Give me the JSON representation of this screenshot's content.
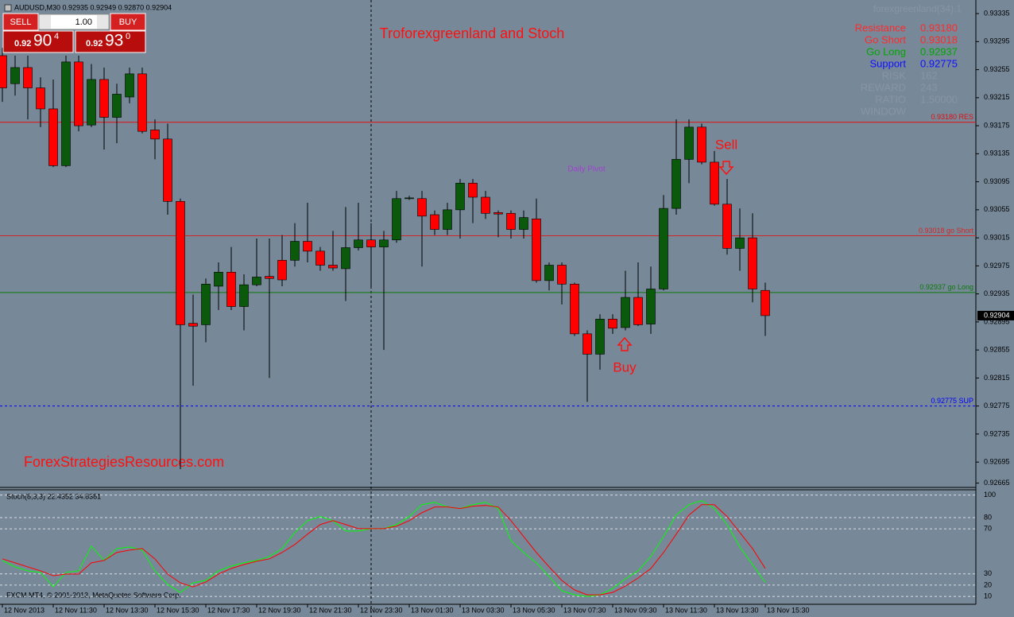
{
  "header": "AUDUSD,M30  0.92935 0.92949 0.92870 0.92904",
  "trade_panel": {
    "sell": "SELL",
    "lot": "1.00",
    "buy": "BUY",
    "sell_price": {
      "prefix": "0.92",
      "big": "90",
      "sup": "4"
    },
    "buy_price": {
      "prefix": "0.92",
      "big": "93",
      "sup": "0"
    }
  },
  "info_panel": {
    "title": "forexgreenland(34).1",
    "rows": [
      {
        "label": "Resistance",
        "value": "0.93180",
        "color": "#ff2a2a"
      },
      {
        "label": "Go Short",
        "value": "0.93018",
        "color": "#ff2a2a"
      },
      {
        "label": "Go Long",
        "value": "0.92937",
        "color": "#00a800"
      },
      {
        "label": "Support",
        "value": "0.92775",
        "color": "#1010ff"
      },
      {
        "label": "RISK",
        "value": "162",
        "color": "#8795a3"
      },
      {
        "label": "REWARD",
        "value": "243",
        "color": "#8795a3"
      },
      {
        "label": "RATIO",
        "value": "1.50000",
        "color": "#8795a3"
      },
      {
        "label": "WINDOW",
        "value": "",
        "color": "#8795a3"
      }
    ]
  },
  "annotations": {
    "title": "Troforexgreenland and Stoch",
    "daily_pivot": "Daily Pivot",
    "sell": "Sell",
    "buy": "Buy",
    "watermark": "ForexStrategiesResources.com",
    "copyright": "FXCM MT4, © 2001-2013, MetaQuotes Software Corp."
  },
  "chart_data": [
    {
      "type": "candlestick",
      "categories": [
        "12 Nov 2013",
        null,
        null,
        null,
        "12 Nov 11:30",
        null,
        null,
        null,
        "12 Nov 13:30",
        null,
        null,
        null,
        "12 Nov 15:30",
        null,
        null,
        null,
        "12 Nov 17:30",
        null,
        null,
        null,
        "12 Nov 19:30",
        null,
        null,
        null,
        "12 Nov 21:30",
        null,
        null,
        null,
        "12 Nov 23:30",
        null,
        null,
        null,
        "13 Nov 01:30",
        null,
        null,
        null,
        "13 Nov 03:30",
        null,
        null,
        null,
        "13 Nov 05:30",
        null,
        null,
        null,
        "13 Nov 07:30",
        null,
        null,
        null,
        "13 Nov 09:30",
        null,
        null,
        null,
        "13 Nov 11:30",
        null,
        null,
        null,
        "13 Nov 13:30",
        null,
        null,
        null,
        "13 Nov 15:30"
      ],
      "open": [
        0.93275,
        0.93235,
        0.93258,
        0.93229,
        0.93199,
        0.93118,
        0.93266,
        0.93176,
        0.93241,
        0.93187,
        0.93216,
        0.93249,
        0.93169,
        0.93156,
        0.93067,
        0.92893,
        0.92891,
        0.92946,
        0.92966,
        0.92917,
        0.92948,
        0.9296,
        0.92983,
        0.92983,
        0.9301,
        0.92996,
        0.92976,
        0.92971,
        0.93001,
        0.93012,
        0.93002,
        0.93012,
        0.93072,
        0.93071,
        0.93048,
        0.93027,
        0.93055,
        0.93093,
        0.93073,
        0.93051,
        0.9305,
        0.93027,
        0.93042,
        0.92954,
        0.92976,
        0.92949,
        0.92878,
        0.92849,
        0.92899,
        0.92887,
        0.9293,
        0.92892,
        0.92942,
        0.93057,
        0.93127,
        0.93173,
        0.93123,
        0.93063,
        0.93,
        0.93015,
        0.9294
      ],
      "high": [
        0.93286,
        0.93275,
        0.93275,
        0.93244,
        0.93241,
        0.93275,
        0.93275,
        0.93263,
        0.93258,
        0.93235,
        0.93258,
        0.93258,
        0.93184,
        0.93178,
        0.93071,
        0.92934,
        0.92957,
        0.9298,
        0.93002,
        0.92963,
        0.93014,
        0.93014,
        0.93019,
        0.93036,
        0.93065,
        0.93002,
        0.93025,
        0.93059,
        0.93065,
        0.93036,
        0.93025,
        0.93082,
        0.93075,
        0.93082,
        0.93054,
        0.93065,
        0.93099,
        0.93099,
        0.93082,
        0.93054,
        0.93054,
        0.93054,
        0.93071,
        0.9298,
        0.9298,
        0.92951,
        0.92883,
        0.92906,
        0.92906,
        0.92968,
        0.9298,
        0.92974,
        0.93076,
        0.93184,
        0.93184,
        0.93178,
        0.93139,
        0.93099,
        0.93057,
        0.9305,
        0.92951
      ],
      "low": [
        0.93209,
        0.93218,
        0.93184,
        0.93173,
        0.93116,
        0.93116,
        0.93167,
        0.93173,
        0.93141,
        0.9315,
        0.93207,
        0.93164,
        0.93127,
        0.93048,
        0.92685,
        0.92804,
        0.92866,
        0.92912,
        0.92912,
        0.92883,
        0.92946,
        0.92815,
        0.92946,
        0.92974,
        0.9298,
        0.92968,
        0.92968,
        0.92925,
        0.92997,
        0.92946,
        0.92855,
        0.93008,
        0.93069,
        0.92974,
        0.93019,
        0.93019,
        0.93014,
        0.93036,
        0.93042,
        0.93016,
        0.93014,
        0.93014,
        0.92951,
        0.9294,
        0.9292,
        0.92875,
        0.92781,
        0.92827,
        0.92878,
        0.92883,
        0.92889,
        0.92878,
        0.9294,
        0.93048,
        0.93093,
        0.9312,
        0.93061,
        0.92991,
        0.92968,
        0.92923,
        0.92875
      ],
      "close": [
        0.93229,
        0.93258,
        0.93229,
        0.93199,
        0.93118,
        0.93266,
        0.93175,
        0.93241,
        0.93187,
        0.9322,
        0.93249,
        0.93167,
        0.93156,
        0.93067,
        0.92891,
        0.92889,
        0.92949,
        0.92966,
        0.92917,
        0.92948,
        0.92959,
        0.92957,
        0.92955,
        0.9301,
        0.92996,
        0.92976,
        0.92972,
        0.93001,
        0.93012,
        0.93002,
        0.93012,
        0.93071,
        0.93072,
        0.93046,
        0.93027,
        0.93055,
        0.93093,
        0.93073,
        0.9305,
        0.93049,
        0.93027,
        0.93044,
        0.92954,
        0.92976,
        0.92949,
        0.92878,
        0.92849,
        0.92899,
        0.92886,
        0.9293,
        0.92891,
        0.92942,
        0.93057,
        0.93127,
        0.93173,
        0.93123,
        0.93063,
        0.93,
        0.93015,
        0.92942,
        0.92904
      ],
      "up_color": "#0b5a0b",
      "down_color": "#ff0000",
      "ylim": [
        0.9266,
        0.93351
      ],
      "yticks": [
        0.93335,
        0.93295,
        0.93255,
        0.93215,
        0.93175,
        0.93135,
        0.93095,
        0.93055,
        0.93015,
        0.92975,
        0.92935,
        0.92895,
        0.92855,
        0.92815,
        0.92775,
        0.92735,
        0.92695,
        0.92665
      ],
      "levels": [
        {
          "value": 0.9318,
          "label": "0.93180 RES",
          "color": "#e01010",
          "dashed": false
        },
        {
          "value": 0.93018,
          "label": "0.93018 go Short",
          "color": "#d02828",
          "dashed": false
        },
        {
          "value": 0.92937,
          "label": "0.92937 go Long",
          "color": "#0a7a0a",
          "dashed": false
        },
        {
          "value": 0.92775,
          "label": "0.92775 SUP",
          "color": "#0000ff",
          "dashed": true
        }
      ],
      "current_price": 0.92904
    },
    {
      "type": "line",
      "title": "Stoch(8,3,3) 22.4352 34.8381",
      "series": [
        {
          "color": "#00ff00",
          "values": [
            41.9,
            36.2,
            32.7,
            31.3,
            18.5,
            31.3,
            32.7,
            54.6,
            41.9,
            52.5,
            53.9,
            51.1,
            32.7,
            20.6,
            13.5,
            22,
            24.2,
            32.7,
            36.9,
            39.8,
            41.9,
            45.4,
            52.5,
            66.7,
            77.3,
            80.9,
            77.3,
            68.1,
            68.1,
            70.2,
            70.2,
            73.8,
            80.9,
            91.5,
            93.6,
            89.4,
            88,
            91.5,
            93.6,
            88,
            59.6,
            49,
            39.8,
            27.7,
            15,
            11.4,
            10,
            11.4,
            17.1,
            25.6,
            32.7,
            45.4,
            63.1,
            82.3,
            91.5,
            95,
            88,
            73.8,
            53.9,
            38.3,
            22.4352
          ]
        },
        {
          "color": "#ff0000",
          "values": [
            43.3,
            39.8,
            36.2,
            32.7,
            28.4,
            29.8,
            29.8,
            39.8,
            41.9,
            49,
            51.1,
            52.5,
            43.3,
            29.8,
            22,
            18.5,
            22.8,
            29.8,
            34.8,
            38.3,
            41.2,
            43.3,
            49,
            56.1,
            65.3,
            73.8,
            77.3,
            73.8,
            70.2,
            70.2,
            70.2,
            72.4,
            77.3,
            84.4,
            89.4,
            89.4,
            88,
            90.1,
            90.8,
            89.4,
            77.3,
            63.1,
            49,
            36.2,
            24.2,
            15.7,
            11.4,
            11.4,
            13.5,
            19.2,
            26.3,
            34.8,
            49,
            65.3,
            82.3,
            91.5,
            91.5,
            80.9,
            66.7,
            52.5,
            34.8381
          ]
        }
      ],
      "ylim": [
        3,
        104
      ],
      "yticks": [
        100,
        80,
        70,
        30,
        20,
        10
      ],
      "grid": true
    }
  ]
}
